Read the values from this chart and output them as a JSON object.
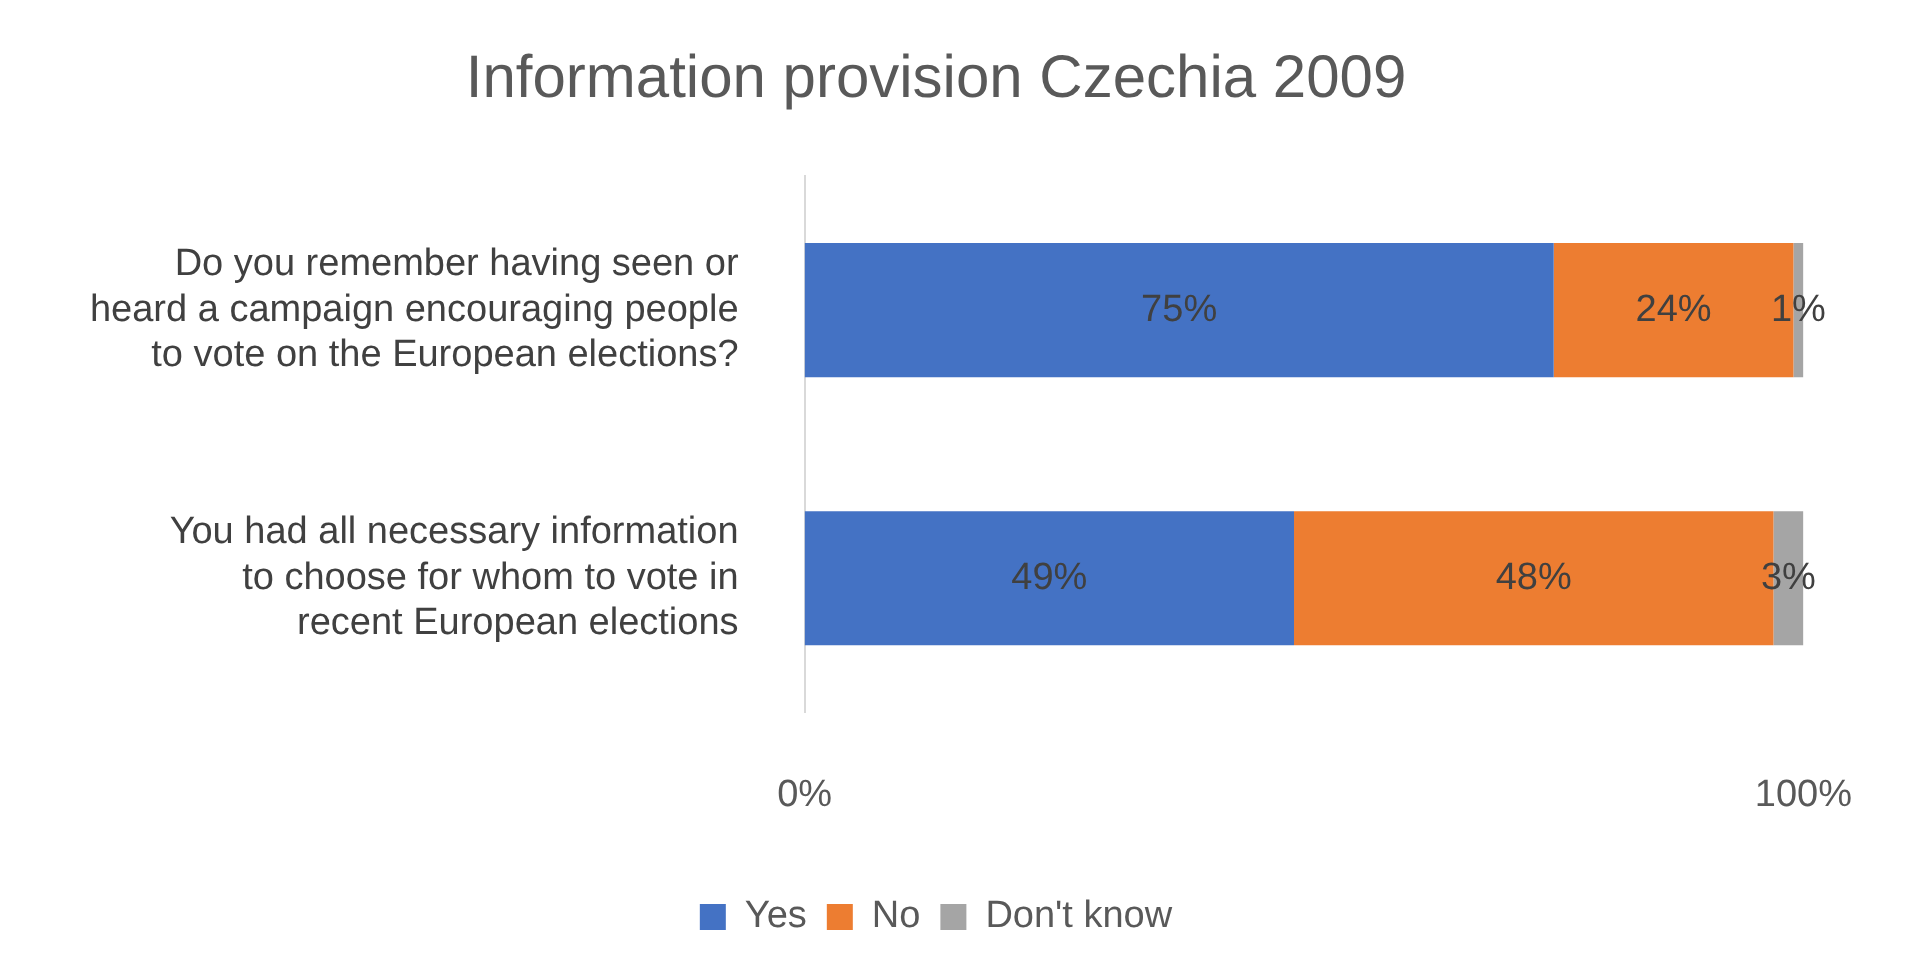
{
  "chart_data": {
    "type": "bar",
    "orientation": "horizontal",
    "stacked": true,
    "title": "Information provision Czechia 2009",
    "categories": [
      "Do you remember having seen or heard a campaign encouraging people to vote on the European elections?",
      "You had all necessary information to choose for whom to vote in recent European elections"
    ],
    "series": [
      {
        "name": "Yes",
        "color": "#4472c4",
        "values": [
          75,
          49
        ],
        "value_labels": [
          "75%",
          "49%"
        ]
      },
      {
        "name": "No",
        "color": "#ed7d31",
        "values": [
          24,
          48
        ],
        "value_labels": [
          "24%",
          "48%"
        ]
      },
      {
        "name": "Don't know",
        "color": "#a5a5a5",
        "values": [
          1,
          3
        ],
        "value_labels": [
          "1%",
          "3%"
        ]
      }
    ],
    "xlim": [
      0,
      100
    ],
    "xticks": [
      {
        "value": 0,
        "label": "0%"
      },
      {
        "value": 100,
        "label": "100%"
      }
    ],
    "grid": false,
    "legend": "bottom"
  }
}
